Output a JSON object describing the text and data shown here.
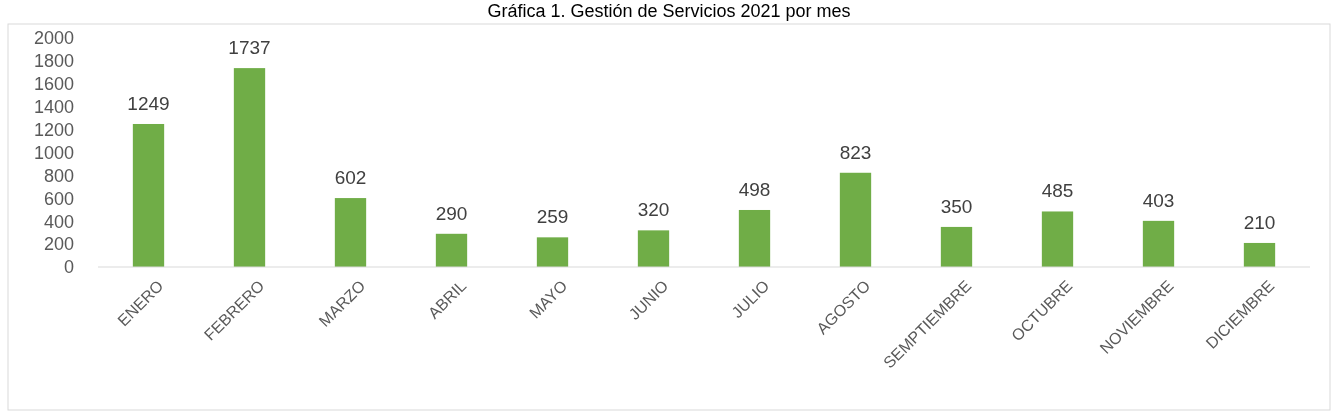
{
  "chart_data": {
    "type": "bar",
    "title": "Gráfica 1. Gestión de Servicios 2021 por mes",
    "categories": [
      "ENERO",
      "FEBRERO",
      "MARZO",
      "ABRIL",
      "MAYO",
      "JUNIO",
      "JULIO",
      "AGOSTO",
      "SEMPTIEMBRE",
      "OCTUBRE",
      "NOVIEMBRE",
      "DICIEMBRE"
    ],
    "values": [
      1249,
      1737,
      602,
      290,
      259,
      320,
      498,
      823,
      350,
      485,
      403,
      210
    ],
    "color": "#70ad47",
    "ylim": [
      0,
      2000
    ],
    "yticks": [
      0,
      200,
      400,
      600,
      800,
      1000,
      1200,
      1400,
      1600,
      1800,
      2000
    ],
    "grid": false,
    "data_labels": true
  }
}
